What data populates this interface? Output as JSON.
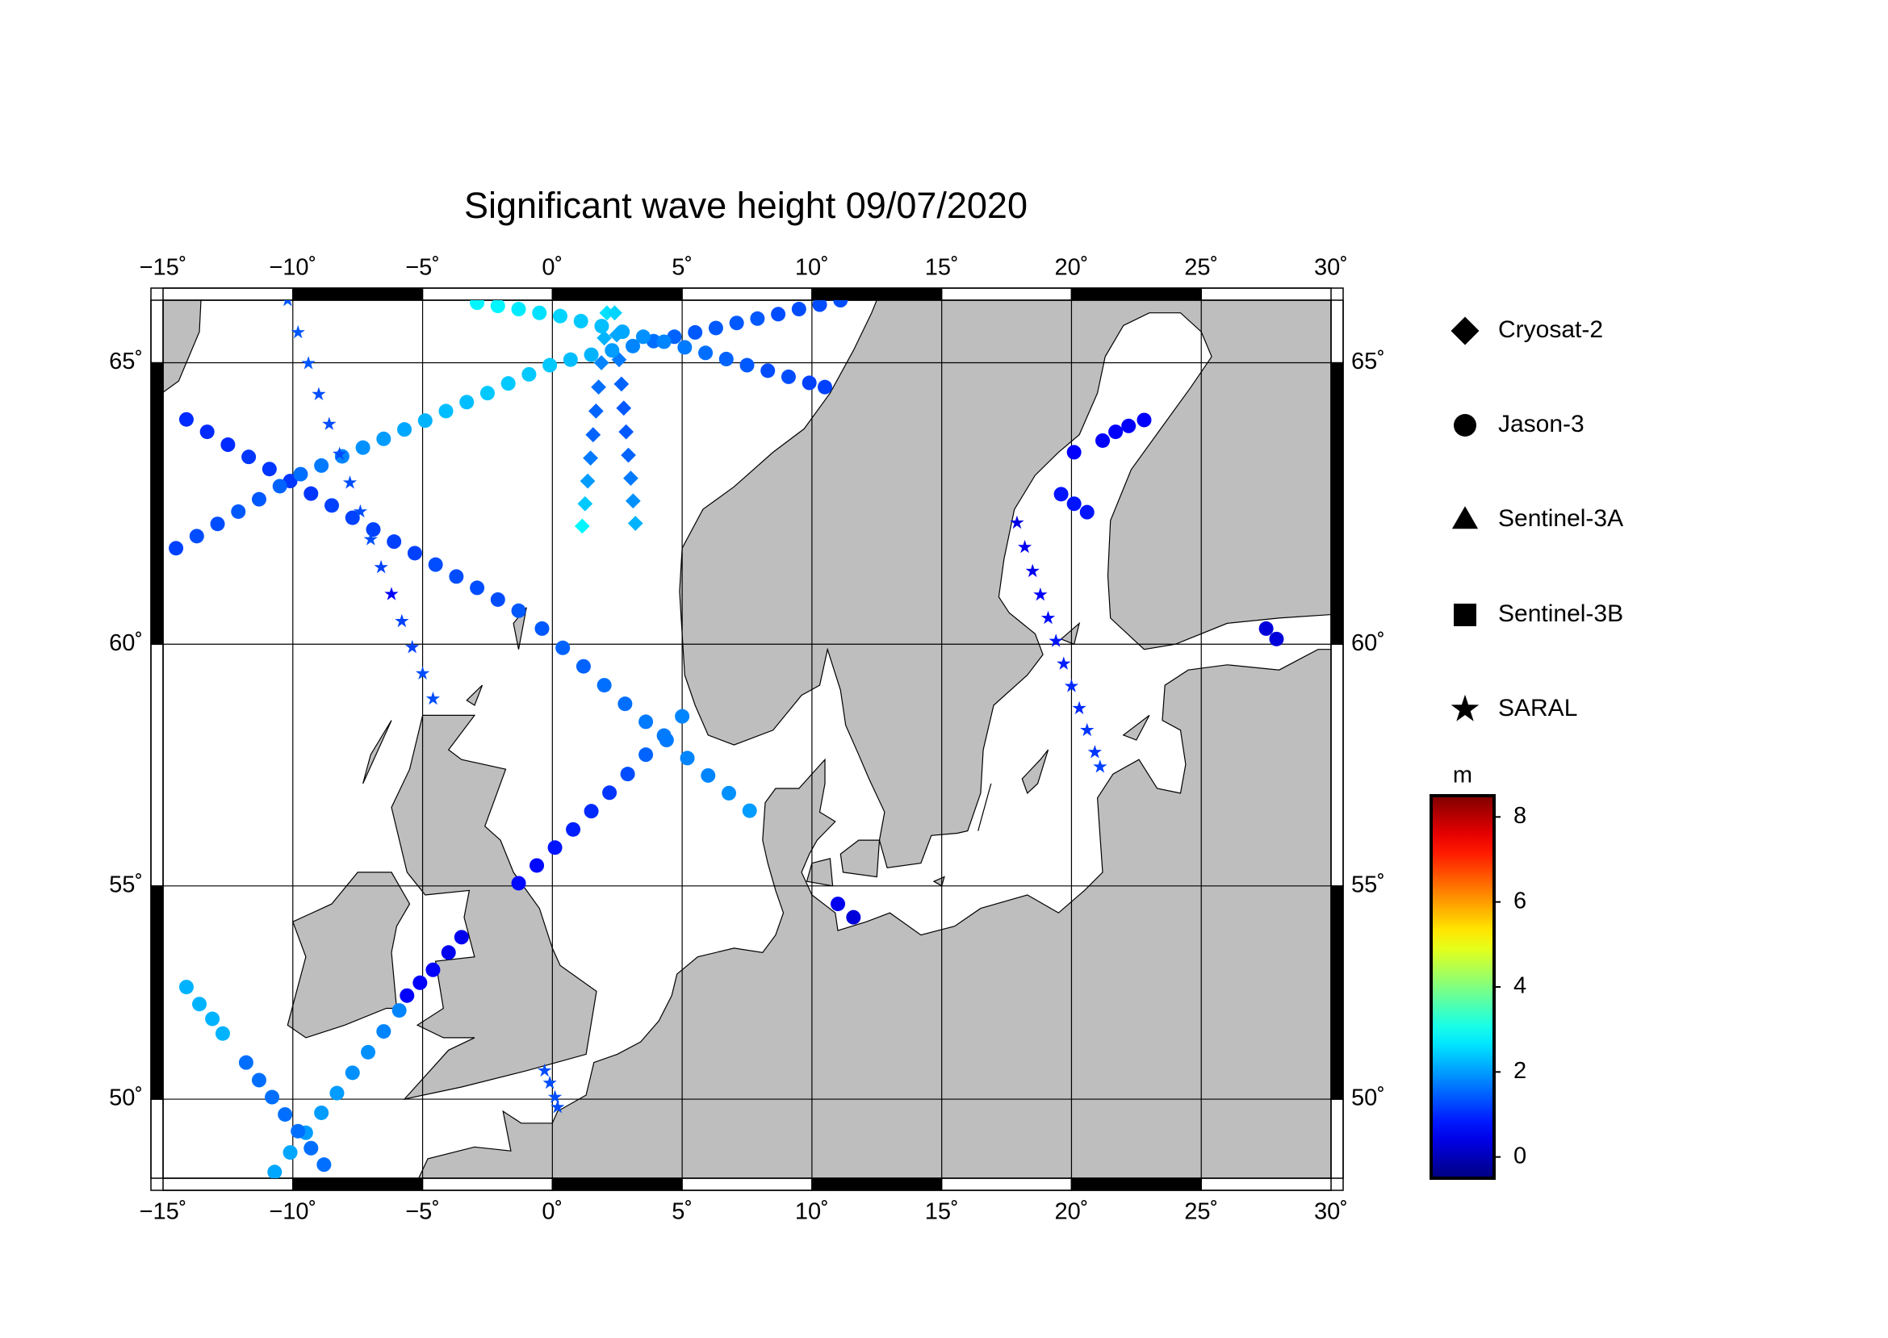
{
  "chart_data": {
    "type": "map",
    "title": "Significant wave height 09/07/2020",
    "lonlim": [
      -15,
      30
    ],
    "latlim": [
      48,
      66
    ],
    "xticks": [
      {
        "value": -15,
        "label": "−15˚"
      },
      {
        "value": -10,
        "label": "−10˚"
      },
      {
        "value": -5,
        "label": "−5˚"
      },
      {
        "value": 0,
        "label": "0˚"
      },
      {
        "value": 5,
        "label": "5˚"
      },
      {
        "value": 10,
        "label": "10˚"
      },
      {
        "value": 15,
        "label": "15˚"
      },
      {
        "value": 20,
        "label": "20˚"
      },
      {
        "value": 25,
        "label": "25˚"
      },
      {
        "value": 30,
        "label": "30˚"
      }
    ],
    "yticks": [
      {
        "value": 50,
        "label": "50˚"
      },
      {
        "value": 55,
        "label": "55˚"
      },
      {
        "value": 60,
        "label": "60˚"
      },
      {
        "value": 65,
        "label": "65˚"
      }
    ],
    "grid": true,
    "land_color": "#bebebe",
    "colormap": "jet",
    "clim": [
      -0.5,
      8.5
    ],
    "cticks": [
      0,
      2,
      4,
      6,
      8
    ],
    "colorbar_label": "m",
    "series": [
      {
        "name": "Cryosat-2",
        "marker": "diamond",
        "x": [
          1.15,
          1.26,
          1.36,
          1.47,
          1.57,
          1.68,
          1.78,
          1.89,
          2.0,
          2.1,
          3.2,
          3.11,
          3.02,
          2.93,
          2.84,
          2.75,
          2.66,
          2.57,
          2.48,
          2.4
        ],
        "y": [
          62.2,
          62.6,
          63.0,
          63.4,
          63.8,
          64.2,
          64.6,
          65.0,
          65.4,
          65.8,
          62.25,
          62.65,
          63.05,
          63.45,
          63.85,
          64.25,
          64.65,
          65.05,
          65.45,
          65.8
        ],
        "values": [
          2.8,
          2.4,
          2.0,
          1.7,
          1.5,
          1.5,
          1.6,
          1.8,
          2.2,
          2.6,
          2.2,
          1.9,
          1.7,
          1.5,
          1.4,
          1.4,
          1.5,
          1.7,
          2.1,
          2.5
        ]
      },
      {
        "name": "Jason-3",
        "marker": "circle",
        "x": [
          -14.1,
          -13.3,
          -12.5,
          -11.7,
          -10.9,
          -10.1,
          -9.3,
          -8.5,
          -7.7,
          -6.9,
          -6.1,
          -5.3,
          -4.5,
          -3.7,
          -2.9,
          -2.1,
          -1.3,
          -0.4,
          0.4,
          1.2,
          2.0,
          2.8,
          3.6,
          4.4,
          5.2,
          6.0,
          6.8,
          7.6,
          -14.5,
          -13.7,
          -12.9,
          -12.1,
          -11.3,
          -10.5,
          -9.7,
          -8.9,
          -8.1,
          -7.3,
          -6.5,
          -5.7,
          -4.9,
          -4.1,
          -3.3,
          -2.5,
          -1.7,
          -0.9,
          -0.1,
          0.7,
          1.5,
          2.3,
          3.1,
          3.9,
          4.7,
          5.5,
          6.3,
          7.1,
          7.9,
          8.7,
          9.5,
          10.3,
          11.1,
          -2.9,
          -2.1,
          -1.3,
          -0.5,
          0.3,
          1.1,
          1.9,
          2.7,
          3.5,
          4.3,
          5.1,
          5.9,
          6.7,
          7.5,
          8.3,
          9.1,
          9.9,
          10.5,
          -10.7,
          -10.1,
          -9.5,
          -8.9,
          -8.3,
          -7.7,
          -7.1,
          -6.5,
          -5.9,
          -5.6,
          -5.1,
          -4.6,
          -4.0,
          -3.5,
          -1.3,
          -0.6,
          0.1,
          0.8,
          1.5,
          2.2,
          2.9,
          3.6,
          4.3,
          5.0,
          -14.1,
          -13.6,
          -13.1,
          -12.7,
          -11.8,
          -11.3,
          -10.8,
          -10.3,
          -9.8,
          -9.3,
          -8.8,
          11.0,
          11.6,
          19.6,
          20.1,
          20.6,
          20.1,
          21.2,
          21.7,
          22.2,
          22.8,
          27.5,
          27.9
        ],
        "y": [
          64.06,
          63.85,
          63.63,
          63.42,
          63.21,
          63.0,
          62.78,
          62.57,
          62.35,
          62.14,
          61.92,
          61.71,
          61.5,
          61.28,
          61.07,
          60.85,
          60.64,
          60.3,
          59.93,
          59.57,
          59.2,
          58.83,
          58.47,
          58.1,
          57.73,
          57.37,
          57.0,
          56.63,
          61.8,
          62.02,
          62.24,
          62.46,
          62.68,
          62.91,
          63.12,
          63.27,
          63.43,
          63.58,
          63.73,
          63.89,
          64.04,
          64.2,
          64.35,
          64.5,
          64.66,
          64.81,
          64.96,
          65.05,
          65.13,
          65.2,
          65.27,
          65.35,
          65.42,
          65.49,
          65.56,
          65.64,
          65.71,
          65.78,
          65.86,
          65.93,
          66.0,
          65.96,
          65.91,
          65.86,
          65.8,
          65.75,
          65.67,
          65.59,
          65.5,
          65.42,
          65.34,
          65.25,
          65.16,
          65.06,
          64.96,
          64.87,
          64.77,
          64.67,
          64.6,
          48.16,
          48.66,
          49.16,
          49.66,
          50.15,
          50.65,
          51.15,
          51.65,
          52.15,
          52.5,
          52.8,
          53.1,
          53.5,
          53.85,
          55.06,
          55.45,
          55.84,
          56.23,
          56.62,
          57.01,
          57.4,
          57.8,
          58.19,
          58.58,
          52.7,
          52.3,
          51.95,
          51.6,
          50.9,
          50.47,
          50.05,
          49.62,
          49.2,
          48.77,
          48.35,
          54.6,
          54.3,
          62.77,
          62.6,
          62.45,
          63.5,
          63.7,
          63.85,
          63.95,
          64.05,
          60.3,
          60.1
        ],
        "values": [
          1.0,
          1.0,
          1.0,
          1.1,
          1.1,
          1.1,
          1.1,
          1.2,
          1.2,
          1.2,
          1.2,
          1.2,
          1.3,
          1.3,
          1.3,
          1.3,
          1.4,
          1.4,
          1.5,
          1.5,
          1.6,
          1.6,
          1.7,
          1.7,
          1.8,
          1.8,
          1.9,
          2.0,
          1.2,
          1.3,
          1.3,
          1.4,
          1.4,
          1.5,
          1.6,
          1.7,
          1.8,
          1.9,
          2.0,
          2.1,
          2.2,
          2.3,
          2.3,
          2.4,
          2.4,
          2.4,
          2.4,
          2.3,
          2.2,
          2.0,
          1.8,
          1.6,
          1.5,
          1.4,
          1.4,
          1.4,
          1.4,
          1.3,
          1.3,
          1.3,
          1.3,
          2.8,
          2.8,
          2.7,
          2.6,
          2.5,
          2.4,
          2.3,
          2.1,
          1.9,
          1.8,
          1.7,
          1.6,
          1.5,
          1.4,
          1.3,
          1.3,
          1.2,
          1.2,
          2.1,
          2.1,
          2.0,
          2.0,
          2.0,
          1.9,
          1.9,
          1.8,
          1.8,
          0.6,
          0.6,
          0.6,
          0.5,
          0.5,
          0.7,
          0.7,
          0.8,
          0.9,
          1.0,
          1.1,
          1.3,
          1.5,
          1.7,
          1.8,
          2.2,
          2.2,
          2.2,
          2.2,
          1.6,
          1.6,
          1.6,
          1.6,
          1.6,
          1.6,
          1.6,
          0.5,
          0.3,
          0.8,
          0.8,
          0.8,
          0.6,
          0.6,
          0.6,
          0.6,
          0.6,
          0.3,
          0.3
        ]
      },
      {
        "name": "Sentinel-3A",
        "marker": "triangle",
        "x": [],
        "y": [],
        "values": []
      },
      {
        "name": "Sentinel-3B",
        "marker": "square",
        "x": [],
        "y": [],
        "values": []
      },
      {
        "name": "SARAL",
        "marker": "star",
        "x": [
          -10.2,
          -9.8,
          -9.4,
          -9.0,
          -8.6,
          -8.2,
          -7.8,
          -7.4,
          -7.0,
          -6.6,
          -6.2,
          -5.8,
          -5.4,
          -5.0,
          -4.6,
          17.9,
          18.2,
          18.5,
          18.8,
          19.1,
          19.4,
          19.7,
          20.0,
          20.3,
          20.6,
          20.9,
          21.1,
          -0.3,
          -0.1,
          0.1,
          0.2
        ],
        "y": [
          66.0,
          65.49,
          64.99,
          64.48,
          63.98,
          63.47,
          62.97,
          62.46,
          61.96,
          61.45,
          60.95,
          60.44,
          59.94,
          59.43,
          58.93,
          62.26,
          61.82,
          61.38,
          60.94,
          60.5,
          60.06,
          59.62,
          59.18,
          58.74,
          58.3,
          57.85,
          57.55,
          50.7,
          50.4,
          50.05,
          49.8
        ],
        "values": [
          1.4,
          1.4,
          1.4,
          1.3,
          1.3,
          1.3,
          1.3,
          1.3,
          1.3,
          1.2,
          0.6,
          1.2,
          1.2,
          1.3,
          1.3,
          0.4,
          0.5,
          0.5,
          0.6,
          0.7,
          0.8,
          0.9,
          1.0,
          1.0,
          1.1,
          1.1,
          1.2,
          1.3,
          1.3,
          1.3,
          1.3
        ]
      }
    ]
  }
}
